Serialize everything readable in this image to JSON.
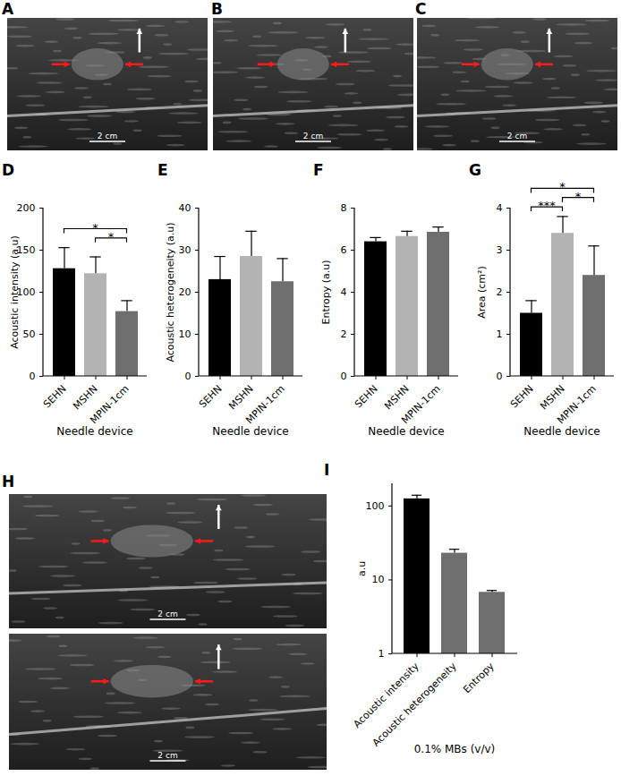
{
  "images": [
    {
      "label": "A",
      "scale_bars": [
        "2 cm"
      ]
    },
    {
      "label": "B",
      "scale_bars": [
        "2 cm"
      ]
    },
    {
      "label": "C",
      "scale_bars": [
        "2 cm"
      ]
    },
    {
      "label": "H",
      "scale_bars": [
        "2 cm",
        "2 cm"
      ]
    }
  ],
  "chart_data": [
    {
      "type": "bar",
      "title": "D",
      "x_label": "Needle device",
      "y_label": "Acoustic intensity (a.u)",
      "categories": [
        "SEHN",
        "MSHN",
        "MPIN-1cm"
      ],
      "values": [
        128,
        122,
        77
      ],
      "errors": [
        25,
        20,
        13
      ],
      "colors": [
        "#000000",
        "#b3b3b3",
        "#6e6e6e"
      ],
      "ylim": [
        0,
        200
      ],
      "yticks": [
        0,
        50,
        100,
        150,
        200
      ],
      "annotations": [
        {
          "between": [
            "MSHN",
            "MPIN-1cm"
          ],
          "text": "*"
        },
        {
          "between": [
            "SEHN",
            "MPIN-1cm"
          ],
          "text": "*"
        }
      ]
    },
    {
      "type": "bar",
      "title": "E",
      "x_label": "Needle device",
      "y_label": "Acoustic heterogeneity (a.u)",
      "categories": [
        "SEHN",
        "MSHN",
        "MPIN-1cm"
      ],
      "values": [
        23,
        28.5,
        22.5
      ],
      "errors": [
        5.5,
        6,
        5.5
      ],
      "colors": [
        "#000000",
        "#b3b3b3",
        "#6e6e6e"
      ],
      "ylim": [
        0,
        40
      ],
      "yticks": [
        0,
        10,
        20,
        30,
        40
      ]
    },
    {
      "type": "bar",
      "title": "F",
      "x_label": "Needle device",
      "y_label": "Entropy (a.u)",
      "categories": [
        "SEHN",
        "MSHN",
        "MPIN-1cm"
      ],
      "values": [
        6.4,
        6.65,
        6.85
      ],
      "errors": [
        0.2,
        0.25,
        0.25
      ],
      "colors": [
        "#000000",
        "#b3b3b3",
        "#6e6e6e"
      ],
      "ylim": [
        0,
        8
      ],
      "yticks": [
        0,
        2,
        4,
        6,
        8
      ]
    },
    {
      "type": "bar",
      "title": "G",
      "x_label": "Needle device",
      "y_label": "Area (cm²)",
      "categories": [
        "SEHN",
        "MSHN",
        "MPIN-1cm"
      ],
      "values": [
        1.5,
        3.4,
        2.4
      ],
      "errors": [
        0.3,
        0.4,
        0.7
      ],
      "colors": [
        "#000000",
        "#b3b3b3",
        "#6e6e6e"
      ],
      "ylim": [
        0,
        4
      ],
      "yticks": [
        0,
        1,
        2,
        3,
        4
      ],
      "annotations": [
        {
          "between": [
            "SEHN",
            "MSHN"
          ],
          "text": "***"
        },
        {
          "between": [
            "MSHN",
            "MPIN-1cm"
          ],
          "text": "*"
        },
        {
          "between": [
            "SEHN",
            "MPIN-1cm"
          ],
          "text": "*"
        }
      ]
    },
    {
      "type": "bar",
      "title": "I",
      "x_label": "0.1% MBs (v/v)",
      "y_label": "a.u",
      "log": "y",
      "categories": [
        "Acoustic intensity",
        "Acoustic heterogeneity",
        "Entropy"
      ],
      "values": [
        125,
        23,
        6.8
      ],
      "errors": [
        15,
        3,
        0.4
      ],
      "colors": [
        "#000000",
        "#6e6e6e",
        "#6e6e6e"
      ],
      "ylim": [
        1,
        200
      ],
      "yticks": [
        1,
        10,
        100
      ]
    }
  ]
}
